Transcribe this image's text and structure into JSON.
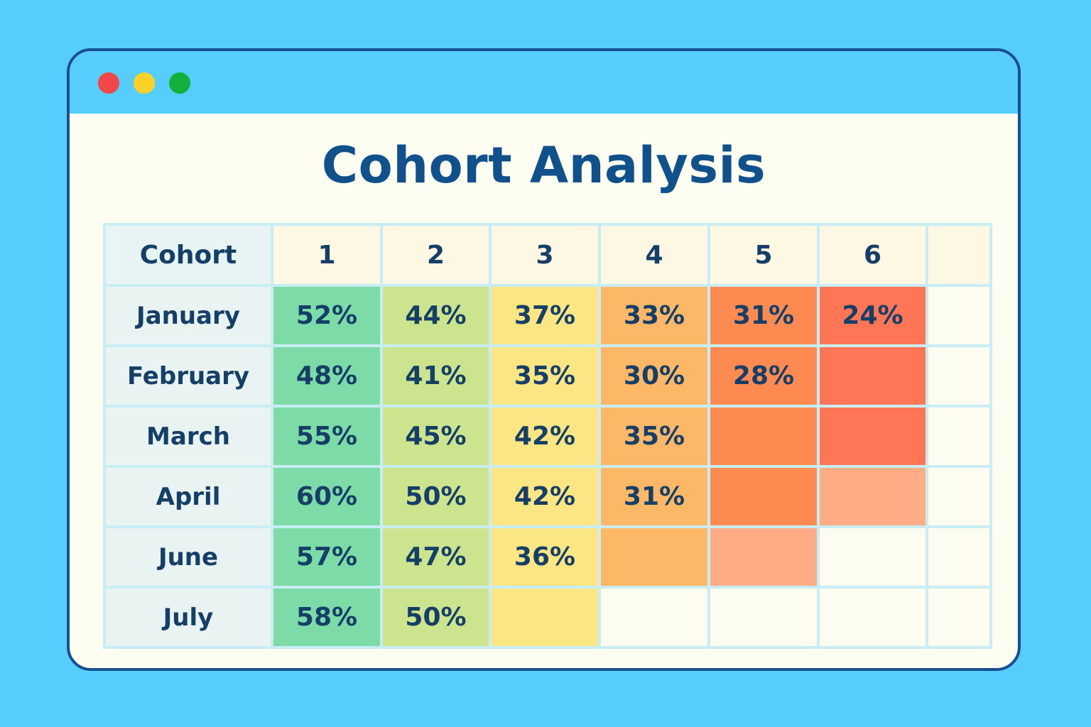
{
  "window": {
    "controls": [
      "close",
      "minimize",
      "maximize"
    ]
  },
  "colors": {
    "background": "#56cdfb",
    "panel": "#fdfdf1",
    "title": "#11518b",
    "text": "#163f68",
    "empty_cell": "#fdfcf1"
  },
  "chart_data": {
    "type": "heatmap",
    "title": "Cohort Analysis",
    "row_header": "Cohort",
    "columns": [
      "1",
      "2",
      "3",
      "4",
      "5",
      "6",
      ""
    ],
    "rows": [
      {
        "label": "January",
        "cells": [
          {
            "text": "52%",
            "color": "#7cdba7"
          },
          {
            "text": "44%",
            "color": "#cbe48d"
          },
          {
            "text": "37%",
            "color": "#fce583"
          },
          {
            "text": "33%",
            "color": "#fcb767"
          },
          {
            "text": "31%",
            "color": "#fd8a50"
          },
          {
            "text": "24%",
            "color": "#fe7655"
          },
          {
            "text": "",
            "color": "#fdfcf1"
          }
        ]
      },
      {
        "label": "February",
        "cells": [
          {
            "text": "48%",
            "color": "#7cdba7"
          },
          {
            "text": "41%",
            "color": "#cbe48d"
          },
          {
            "text": "35%",
            "color": "#fce583"
          },
          {
            "text": "30%",
            "color": "#fcb767"
          },
          {
            "text": "28%",
            "color": "#fd8a50"
          },
          {
            "text": "",
            "color": "#fe7655"
          },
          {
            "text": "",
            "color": "#fdfcf1"
          }
        ]
      },
      {
        "label": "March",
        "cells": [
          {
            "text": "55%",
            "color": "#7cdba7"
          },
          {
            "text": "45%",
            "color": "#cbe48d"
          },
          {
            "text": "42%",
            "color": "#fce583"
          },
          {
            "text": "35%",
            "color": "#fcb767"
          },
          {
            "text": "",
            "color": "#fd8a50"
          },
          {
            "text": "",
            "color": "#fe7655"
          },
          {
            "text": "",
            "color": "#fdfcf1"
          }
        ]
      },
      {
        "label": "April",
        "cells": [
          {
            "text": "60%",
            "color": "#7cdba7"
          },
          {
            "text": "50%",
            "color": "#cbe48d"
          },
          {
            "text": "42%",
            "color": "#fce583"
          },
          {
            "text": "31%",
            "color": "#fcb767"
          },
          {
            "text": "",
            "color": "#fd8a50"
          },
          {
            "text": "",
            "color": "#fdac86"
          },
          {
            "text": "",
            "color": "#fdfcf1"
          }
        ]
      },
      {
        "label": "June",
        "cells": [
          {
            "text": "57%",
            "color": "#7cdba7"
          },
          {
            "text": "47%",
            "color": "#cbe48d"
          },
          {
            "text": "36%",
            "color": "#fce583"
          },
          {
            "text": "",
            "color": "#fcb767"
          },
          {
            "text": "",
            "color": "#fdac86"
          },
          {
            "text": "",
            "color": "#fdfcf1"
          },
          {
            "text": "",
            "color": "#fdfcf1"
          }
        ]
      },
      {
        "label": "July",
        "cells": [
          {
            "text": "58%",
            "color": "#7cdba7"
          },
          {
            "text": "50%",
            "color": "#cbe48d"
          },
          {
            "text": "",
            "color": "#fce583"
          },
          {
            "text": "",
            "color": "#fdfcf1"
          },
          {
            "text": "",
            "color": "#fdfcf1"
          },
          {
            "text": "",
            "color": "#fdfcf1"
          },
          {
            "text": "",
            "color": "#fdfcf1"
          }
        ]
      }
    ]
  }
}
